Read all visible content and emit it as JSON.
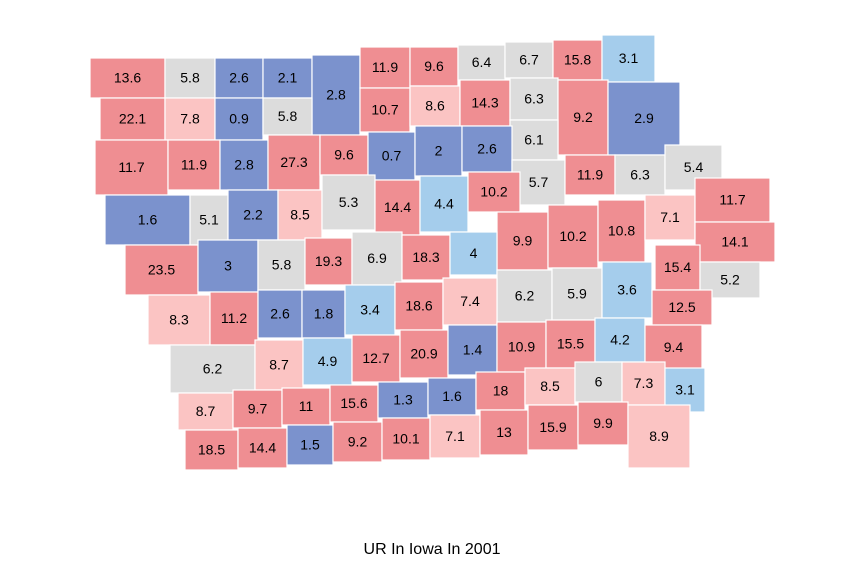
{
  "map": {
    "type": "choropleth",
    "title": "UR In Iowa In 2001",
    "regions": [
      {
        "value": 13.6,
        "color": "#ef8e92"
      },
      {
        "value": 5.8,
        "color": "#dcdcdc"
      },
      {
        "value": 2.6,
        "color": "#7b92cd"
      },
      {
        "value": 2.1,
        "color": "#7b92cd"
      },
      {
        "value": 2.8,
        "color": "#7b92cd"
      },
      {
        "value": 11.9,
        "color": "#ef8e92"
      },
      {
        "value": 9.6,
        "color": "#ef8e92"
      },
      {
        "value": 6.4,
        "color": "#dcdcdc"
      },
      {
        "value": 6.7,
        "color": "#dcdcdc"
      },
      {
        "value": 15.8,
        "color": "#ef8e92"
      },
      {
        "value": 3.1,
        "color": "#a5cdec"
      },
      {
        "value": 22.1,
        "color": "#ef8e92"
      },
      {
        "value": 7.8,
        "color": "#fbc4c3"
      },
      {
        "value": 0.9,
        "color": "#7b92cd"
      },
      {
        "value": 5.8,
        "color": "#dcdcdc"
      },
      {
        "value": 10.7,
        "color": "#ef8e92"
      },
      {
        "value": 8.6,
        "color": "#fbc4c3"
      },
      {
        "value": 14.3,
        "color": "#ef8e92"
      },
      {
        "value": 6.3,
        "color": "#dcdcdc"
      },
      {
        "value": 9.2,
        "color": "#ef8e92"
      },
      {
        "value": 2.9,
        "color": "#7b92cd"
      },
      {
        "value": 6.1,
        "color": "#dcdcdc"
      },
      {
        "value": 11.7,
        "color": "#ef8e92"
      },
      {
        "value": 11.9,
        "color": "#ef8e92"
      },
      {
        "value": 2.8,
        "color": "#7b92cd"
      },
      {
        "value": 27.3,
        "color": "#ef8e92"
      },
      {
        "value": 9.6,
        "color": "#ef8e92"
      },
      {
        "value": 0.7,
        "color": "#7b92cd"
      },
      {
        "value": 2,
        "color": "#7b92cd"
      },
      {
        "value": 2.6,
        "color": "#7b92cd"
      },
      {
        "value": 5.7,
        "color": "#dcdcdc"
      },
      {
        "value": 11.9,
        "color": "#ef8e92"
      },
      {
        "value": 6.3,
        "color": "#dcdcdc"
      },
      {
        "value": 5.4,
        "color": "#dcdcdc"
      },
      {
        "value": 1.6,
        "color": "#7b92cd"
      },
      {
        "value": 5.1,
        "color": "#dcdcdc"
      },
      {
        "value": 2.2,
        "color": "#7b92cd"
      },
      {
        "value": 8.5,
        "color": "#fbc4c3"
      },
      {
        "value": 5.3,
        "color": "#dcdcdc"
      },
      {
        "value": 14.4,
        "color": "#ef8e92"
      },
      {
        "value": 4.4,
        "color": "#a5cdec"
      },
      {
        "value": 10.2,
        "color": "#ef8e92"
      },
      {
        "value": 9.9,
        "color": "#ef8e92"
      },
      {
        "value": 10.2,
        "color": "#ef8e92"
      },
      {
        "value": 10.8,
        "color": "#ef8e92"
      },
      {
        "value": 7.1,
        "color": "#fbc4c3"
      },
      {
        "value": 11.7,
        "color": "#ef8e92"
      },
      {
        "value": 14.1,
        "color": "#ef8e92"
      },
      {
        "value": 23.5,
        "color": "#ef8e92"
      },
      {
        "value": 3,
        "color": "#7b92cd"
      },
      {
        "value": 5.8,
        "color": "#dcdcdc"
      },
      {
        "value": 19.3,
        "color": "#ef8e92"
      },
      {
        "value": 6.9,
        "color": "#dcdcdc"
      },
      {
        "value": 18.3,
        "color": "#ef8e92"
      },
      {
        "value": 4,
        "color": "#a5cdec"
      },
      {
        "value": 15.4,
        "color": "#ef8e92"
      },
      {
        "value": 5.2,
        "color": "#dcdcdc"
      },
      {
        "value": 6.2,
        "color": "#dcdcdc"
      },
      {
        "value": 5.9,
        "color": "#dcdcdc"
      },
      {
        "value": 3.6,
        "color": "#a5cdec"
      },
      {
        "value": 12.5,
        "color": "#ef8e92"
      },
      {
        "value": 8.3,
        "color": "#fbc4c3"
      },
      {
        "value": 11.2,
        "color": "#ef8e92"
      },
      {
        "value": 2.6,
        "color": "#7b92cd"
      },
      {
        "value": 1.8,
        "color": "#7b92cd"
      },
      {
        "value": 3.4,
        "color": "#a5cdec"
      },
      {
        "value": 18.6,
        "color": "#ef8e92"
      },
      {
        "value": 7.4,
        "color": "#fbc4c3"
      },
      {
        "value": 6.2,
        "color": "#dcdcdc"
      },
      {
        "value": 8.7,
        "color": "#fbc4c3"
      },
      {
        "value": 4.9,
        "color": "#a5cdec"
      },
      {
        "value": 12.7,
        "color": "#ef8e92"
      },
      {
        "value": 20.9,
        "color": "#ef8e92"
      },
      {
        "value": 1.4,
        "color": "#7b92cd"
      },
      {
        "value": 10.9,
        "color": "#ef8e92"
      },
      {
        "value": 15.5,
        "color": "#ef8e92"
      },
      {
        "value": 4.2,
        "color": "#a5cdec"
      },
      {
        "value": 9.4,
        "color": "#ef8e92"
      },
      {
        "value": 8.7,
        "color": "#fbc4c3"
      },
      {
        "value": 9.7,
        "color": "#ef8e92"
      },
      {
        "value": 11,
        "color": "#ef8e92"
      },
      {
        "value": 15.6,
        "color": "#ef8e92"
      },
      {
        "value": 1.3,
        "color": "#7b92cd"
      },
      {
        "value": 1.6,
        "color": "#7b92cd"
      },
      {
        "value": 18,
        "color": "#ef8e92"
      },
      {
        "value": 8.5,
        "color": "#fbc4c3"
      },
      {
        "value": 6,
        "color": "#dcdcdc"
      },
      {
        "value": 7.3,
        "color": "#fbc4c3"
      },
      {
        "value": 3.1,
        "color": "#a5cdec"
      },
      {
        "value": 18.5,
        "color": "#ef8e92"
      },
      {
        "value": 14.4,
        "color": "#ef8e92"
      },
      {
        "value": 1.5,
        "color": "#7b92cd"
      },
      {
        "value": 9.2,
        "color": "#ef8e92"
      },
      {
        "value": 10.1,
        "color": "#ef8e92"
      },
      {
        "value": 7.1,
        "color": "#fbc4c3"
      },
      {
        "value": 13,
        "color": "#ef8e92"
      },
      {
        "value": 15.9,
        "color": "#ef8e92"
      },
      {
        "value": 9.9,
        "color": "#ef8e92"
      },
      {
        "value": 8.9,
        "color": "#fbc4c3"
      }
    ]
  }
}
